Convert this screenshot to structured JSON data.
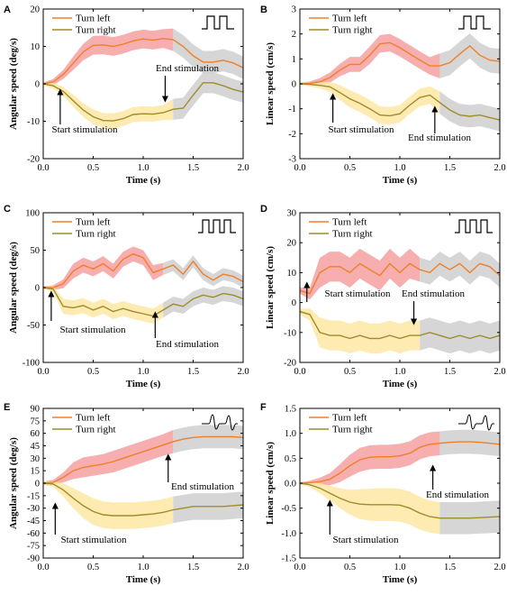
{
  "colors": {
    "left_line": "#f07f2a",
    "left_band": "#f5a0a0",
    "right_line": "#9e8c2c",
    "right_band": "#fde8a4",
    "post_band": "#cfcfcf",
    "axis": "#000000"
  },
  "chart_data": [
    {
      "type": "line",
      "panel": "A",
      "stim": "square-2",
      "ylabel": "Angular speed (deg/s)",
      "xlabel": "Time (s)",
      "xlim": [
        0,
        2.0
      ],
      "xticks": [
        0.0,
        0.5,
        1.0,
        1.5,
        2.0
      ],
      "ylim": [
        -20,
        20
      ],
      "yticks": [
        -20,
        -10,
        0,
        10,
        20
      ],
      "legend": [
        "Turn left",
        "Turn right"
      ],
      "stim_start": 0.17,
      "stim_end": 1.22,
      "series": [
        {
          "name": "Turn left",
          "x": [
            0,
            0.1,
            0.2,
            0.3,
            0.4,
            0.5,
            0.6,
            0.7,
            0.8,
            0.9,
            1.0,
            1.1,
            1.2,
            1.3,
            1.4,
            1.5,
            1.6,
            1.7,
            1.8,
            1.9,
            2.0
          ],
          "y": [
            0,
            0.5,
            2.5,
            5.5,
            8.5,
            10.3,
            10.4,
            10.0,
            10.6,
            11.5,
            12.0,
            11.7,
            12.1,
            11.8,
            10.0,
            7.5,
            5.8,
            5.8,
            6.3,
            5.6,
            4.3
          ],
          "err": [
            0.3,
            0.8,
            1.2,
            1.8,
            2.2,
            2.5,
            2.5,
            2.5,
            2.5,
            2.5,
            2.5,
            2.5,
            2.5,
            3.0,
            3.0,
            3.0,
            3.0,
            3.0,
            3.0,
            3.0,
            3.0
          ]
        },
        {
          "name": "Turn right",
          "x": [
            0,
            0.1,
            0.2,
            0.3,
            0.4,
            0.5,
            0.6,
            0.7,
            0.8,
            0.9,
            1.0,
            1.1,
            1.2,
            1.3,
            1.4,
            1.5,
            1.6,
            1.7,
            1.8,
            1.9,
            2.0
          ],
          "y": [
            0,
            -0.5,
            -2.0,
            -4.5,
            -7.0,
            -8.8,
            -9.8,
            -9.9,
            -9.3,
            -8.2,
            -8.0,
            -8.1,
            -7.7,
            -6.8,
            -6.5,
            -3.0,
            0.3,
            0.3,
            -0.5,
            -1.5,
            -2.2
          ],
          "err": [
            0.3,
            0.8,
            1.2,
            1.6,
            1.8,
            2.0,
            2.0,
            2.0,
            2.0,
            2.0,
            2.0,
            2.0,
            2.0,
            2.8,
            2.8,
            2.8,
            2.8,
            2.8,
            2.8,
            2.8,
            2.8
          ]
        }
      ],
      "annotations": [
        {
          "text": "Start stimulation",
          "x": 0.17
        },
        {
          "text": "End stimulation",
          "x": 1.22
        }
      ]
    },
    {
      "type": "line",
      "panel": "B",
      "stim": "square-2",
      "ylabel": "Linear speed (cm/s)",
      "xlabel": "Time (s)",
      "xlim": [
        0,
        2.0
      ],
      "xticks": [
        0.0,
        0.5,
        1.0,
        1.5,
        2.0
      ],
      "ylim": [
        -3,
        3
      ],
      "yticks": [
        -3,
        -2,
        -1,
        0,
        1,
        2,
        3
      ],
      "legend": [
        "Turn left",
        "Turn right"
      ],
      "stim_start": 0.33,
      "stim_end": 1.35,
      "series": [
        {
          "name": "Turn left",
          "x": [
            0,
            0.1,
            0.2,
            0.3,
            0.4,
            0.5,
            0.6,
            0.7,
            0.8,
            0.9,
            1.0,
            1.1,
            1.2,
            1.3,
            1.4,
            1.5,
            1.6,
            1.7,
            1.8,
            1.9,
            2.0
          ],
          "y": [
            0,
            0.02,
            0.08,
            0.25,
            0.55,
            0.78,
            0.78,
            1.15,
            1.6,
            1.65,
            1.45,
            1.2,
            0.95,
            0.72,
            0.72,
            0.85,
            1.2,
            1.52,
            1.15,
            0.95,
            0.9
          ],
          "err": [
            0.04,
            0.08,
            0.15,
            0.2,
            0.25,
            0.3,
            0.3,
            0.35,
            0.35,
            0.35,
            0.35,
            0.35,
            0.35,
            0.35,
            0.5,
            0.5,
            0.5,
            0.5,
            0.5,
            0.5,
            0.5
          ]
        },
        {
          "name": "Turn right",
          "x": [
            0,
            0.1,
            0.2,
            0.3,
            0.4,
            0.5,
            0.6,
            0.7,
            0.8,
            0.9,
            1.0,
            1.1,
            1.2,
            1.3,
            1.4,
            1.5,
            1.6,
            1.7,
            1.8,
            1.9,
            2.0
          ],
          "y": [
            0,
            -0.02,
            -0.06,
            -0.12,
            -0.35,
            -0.6,
            -0.78,
            -1.0,
            -1.25,
            -1.28,
            -1.2,
            -0.85,
            -0.55,
            -0.45,
            -0.75,
            -1.05,
            -1.25,
            -1.3,
            -1.25,
            -1.35,
            -1.45
          ],
          "err": [
            0.04,
            0.08,
            0.12,
            0.2,
            0.3,
            0.35,
            0.35,
            0.35,
            0.35,
            0.35,
            0.35,
            0.35,
            0.35,
            0.35,
            0.45,
            0.45,
            0.45,
            0.45,
            0.45,
            0.45,
            0.45
          ]
        }
      ],
      "annotations": [
        {
          "text": "Start stimulation",
          "x": 0.33
        },
        {
          "text": "End stimulation",
          "x": 1.35
        }
      ]
    },
    {
      "type": "line",
      "panel": "C",
      "stim": "square-3",
      "ylabel": "Angular speed (deg/s)",
      "xlabel": "Time (s)",
      "xlim": [
        0,
        2.0
      ],
      "xticks": [
        0.0,
        0.5,
        1.0,
        1.5,
        2.0
      ],
      "ylim": [
        -100,
        100
      ],
      "yticks": [
        -100,
        -50,
        0,
        50,
        100
      ],
      "legend": [
        "Turn left",
        "Turn right"
      ],
      "stim_start": 0.08,
      "stim_end": 1.12,
      "series": [
        {
          "name": "Turn left",
          "x": [
            0,
            0.1,
            0.2,
            0.3,
            0.4,
            0.5,
            0.6,
            0.7,
            0.8,
            0.9,
            1.0,
            1.1,
            1.2,
            1.3,
            1.4,
            1.5,
            1.6,
            1.7,
            1.8,
            1.9,
            2.0
          ],
          "y": [
            0,
            0,
            5,
            22,
            30,
            25,
            32,
            22,
            38,
            45,
            40,
            20,
            25,
            30,
            18,
            35,
            18,
            10,
            18,
            15,
            8
          ],
          "err": [
            2,
            3,
            6,
            10,
            10,
            10,
            10,
            10,
            10,
            10,
            10,
            10,
            8,
            8,
            8,
            8,
            8,
            8,
            8,
            8,
            8
          ]
        },
        {
          "name": "Turn right",
          "x": [
            0,
            0.1,
            0.2,
            0.3,
            0.4,
            0.5,
            0.6,
            0.7,
            0.8,
            0.9,
            1.0,
            1.1,
            1.2,
            1.3,
            1.4,
            1.5,
            1.6,
            1.7,
            1.8,
            1.9,
            2.0
          ],
          "y": [
            0,
            -2,
            -25,
            -27,
            -24,
            -30,
            -25,
            -32,
            -28,
            -32,
            -35,
            -38,
            -30,
            -22,
            -25,
            -15,
            -10,
            -13,
            -8,
            -10,
            -15
          ],
          "err": [
            2,
            4,
            10,
            10,
            10,
            10,
            10,
            10,
            10,
            10,
            10,
            10,
            10,
            10,
            10,
            10,
            10,
            10,
            10,
            10,
            10
          ]
        }
      ],
      "annotations": [
        {
          "text": "Start stimulation",
          "x": 0.08
        },
        {
          "text": "End stimulation",
          "x": 1.12
        }
      ]
    },
    {
      "type": "line",
      "panel": "D",
      "stim": "square-3",
      "ylabel": "Linear speed (cm/s)",
      "xlabel": "Time (s)",
      "xlim": [
        0,
        2.0
      ],
      "xticks": [
        0.0,
        0.5,
        1.0,
        1.5,
        2.0
      ],
      "ylim": [
        -20,
        30
      ],
      "yticks": [
        -20,
        -10,
        0,
        10,
        20,
        30
      ],
      "legend": [
        "Turn left",
        "Turn right"
      ],
      "stim_start": 0.07,
      "stim_end": 1.14,
      "series": [
        {
          "name": "Turn left",
          "x": [
            0,
            0.1,
            0.2,
            0.3,
            0.4,
            0.5,
            0.6,
            0.7,
            0.8,
            0.9,
            1.0,
            1.1,
            1.2,
            1.3,
            1.4,
            1.5,
            1.6,
            1.7,
            1.8,
            1.9,
            2.0
          ],
          "y": [
            4,
            3,
            10,
            12,
            12,
            10,
            13,
            11,
            9,
            13,
            10,
            13,
            11,
            10,
            13,
            11,
            13,
            10,
            13,
            12,
            9
          ],
          "err": [
            1,
            2,
            5,
            5,
            5,
            5,
            5,
            5,
            5,
            5,
            5,
            5,
            4,
            4,
            4,
            4,
            4,
            4,
            4,
            4,
            4
          ]
        },
        {
          "name": "Turn right",
          "x": [
            0,
            0.1,
            0.2,
            0.3,
            0.4,
            0.5,
            0.6,
            0.7,
            0.8,
            0.9,
            1.0,
            1.1,
            1.2,
            1.3,
            1.4,
            1.5,
            1.6,
            1.7,
            1.8,
            1.9,
            2.0
          ],
          "y": [
            -3,
            -4,
            -10,
            -11,
            -11,
            -12,
            -11,
            -12,
            -12,
            -11,
            -12,
            -11,
            -11,
            -10,
            -11,
            -12,
            -11,
            -12,
            -11,
            -12,
            -11
          ],
          "err": [
            1,
            2,
            5,
            5,
            5,
            5,
            5,
            5,
            5,
            5,
            5,
            5,
            5,
            5,
            5,
            5,
            5,
            5,
            5,
            5,
            5
          ]
        }
      ],
      "annotations": [
        {
          "text": "Start stimulation",
          "x": 0.07
        },
        {
          "text": "End stimulation",
          "x": 1.14
        }
      ]
    },
    {
      "type": "line",
      "panel": "E",
      "stim": "spike",
      "ylabel": "Angular speed (deg/s)",
      "xlabel": "Time (s)",
      "xlim": [
        0,
        2.0
      ],
      "xticks": [
        0.0,
        0.5,
        1.0,
        1.5,
        2.0
      ],
      "ylim": [
        -90,
        90
      ],
      "yticks": [
        -90,
        -75,
        -60,
        -45,
        -30,
        -15,
        0,
        15,
        30,
        45,
        60,
        75,
        90
      ],
      "legend": [
        "Turn left",
        "Turn right"
      ],
      "stim_start": 0.12,
      "stim_end": 1.25,
      "series": [
        {
          "name": "Turn left",
          "x": [
            0,
            0.1,
            0.2,
            0.3,
            0.4,
            0.5,
            0.6,
            0.7,
            0.8,
            0.9,
            1.0,
            1.1,
            1.2,
            1.3,
            1.4,
            1.5,
            1.6,
            1.7,
            1.8,
            1.9,
            2.0
          ],
          "y": [
            0,
            1,
            7,
            15,
            19,
            21,
            23,
            26,
            30,
            34,
            38,
            42,
            46,
            50,
            53,
            55,
            56,
            56,
            56,
            56,
            55
          ],
          "err": [
            2,
            3,
            6,
            10,
            12,
            12,
            12,
            13,
            13,
            13,
            13,
            13,
            13,
            14,
            14,
            14,
            14,
            14,
            14,
            14,
            14
          ]
        },
        {
          "name": "Turn right",
          "x": [
            0,
            0.1,
            0.2,
            0.3,
            0.4,
            0.5,
            0.6,
            0.7,
            0.8,
            0.9,
            1.0,
            1.1,
            1.2,
            1.3,
            1.4,
            1.5,
            1.6,
            1.7,
            1.8,
            1.9,
            2.0
          ],
          "y": [
            0,
            -1,
            -8,
            -18,
            -27,
            -34,
            -38,
            -39,
            -39,
            -39,
            -38,
            -37,
            -35,
            -32,
            -30,
            -28,
            -28,
            -28,
            -28,
            -27,
            -26
          ],
          "err": [
            2,
            3,
            8,
            12,
            15,
            16,
            16,
            16,
            16,
            16,
            16,
            16,
            16,
            16,
            16,
            16,
            16,
            16,
            16,
            16,
            16
          ]
        }
      ],
      "annotations": [
        {
          "text": "Start stimulation",
          "x": 0.12
        },
        {
          "text": "End stimulation",
          "x": 1.25
        }
      ]
    },
    {
      "type": "line",
      "panel": "F",
      "stim": "spike",
      "ylabel": "Linear speed (cm/s)",
      "xlabel": "Time (s)",
      "xlim": [
        0,
        2.0
      ],
      "xticks": [
        0.0,
        0.5,
        1.0,
        1.5,
        2.0
      ],
      "ylim": [
        -1.5,
        1.5
      ],
      "yticks": [
        -1.5,
        -1.0,
        -0.5,
        0.0,
        0.5,
        1.0,
        1.5
      ],
      "legend": [
        "Turn left",
        "Turn right"
      ],
      "stim_start": 0.3,
      "stim_end": 1.33,
      "series": [
        {
          "name": "Turn left",
          "x": [
            0,
            0.1,
            0.2,
            0.3,
            0.4,
            0.5,
            0.6,
            0.7,
            0.8,
            0.9,
            1.0,
            1.1,
            1.2,
            1.3,
            1.4,
            1.5,
            1.6,
            1.7,
            1.8,
            1.9,
            2.0
          ],
          "y": [
            0,
            0.01,
            0.03,
            0.08,
            0.2,
            0.35,
            0.47,
            0.52,
            0.53,
            0.53,
            0.55,
            0.6,
            0.72,
            0.78,
            0.8,
            0.82,
            0.83,
            0.83,
            0.82,
            0.8,
            0.78
          ],
          "err": [
            0.02,
            0.04,
            0.08,
            0.12,
            0.18,
            0.22,
            0.24,
            0.24,
            0.24,
            0.24,
            0.24,
            0.24,
            0.24,
            0.24,
            0.24,
            0.24,
            0.24,
            0.24,
            0.24,
            0.24,
            0.24
          ]
        },
        {
          "name": "Turn right",
          "x": [
            0,
            0.1,
            0.2,
            0.3,
            0.4,
            0.5,
            0.6,
            0.7,
            0.8,
            0.9,
            1.0,
            1.1,
            1.2,
            1.3,
            1.4,
            1.5,
            1.6,
            1.7,
            1.8,
            1.9,
            2.0
          ],
          "y": [
            0,
            -0.03,
            -0.1,
            -0.2,
            -0.3,
            -0.38,
            -0.42,
            -0.43,
            -0.43,
            -0.43,
            -0.44,
            -0.5,
            -0.6,
            -0.67,
            -0.7,
            -0.7,
            -0.7,
            -0.7,
            -0.69,
            -0.68,
            -0.67
          ],
          "err": [
            0.02,
            0.05,
            0.1,
            0.15,
            0.2,
            0.25,
            0.3,
            0.32,
            0.33,
            0.33,
            0.33,
            0.33,
            0.33,
            0.32,
            0.32,
            0.32,
            0.32,
            0.32,
            0.32,
            0.32,
            0.32
          ]
        }
      ],
      "annotations": [
        {
          "text": "Start stimulation",
          "x": 0.3
        },
        {
          "text": "End stimulation",
          "x": 1.33
        }
      ]
    }
  ]
}
